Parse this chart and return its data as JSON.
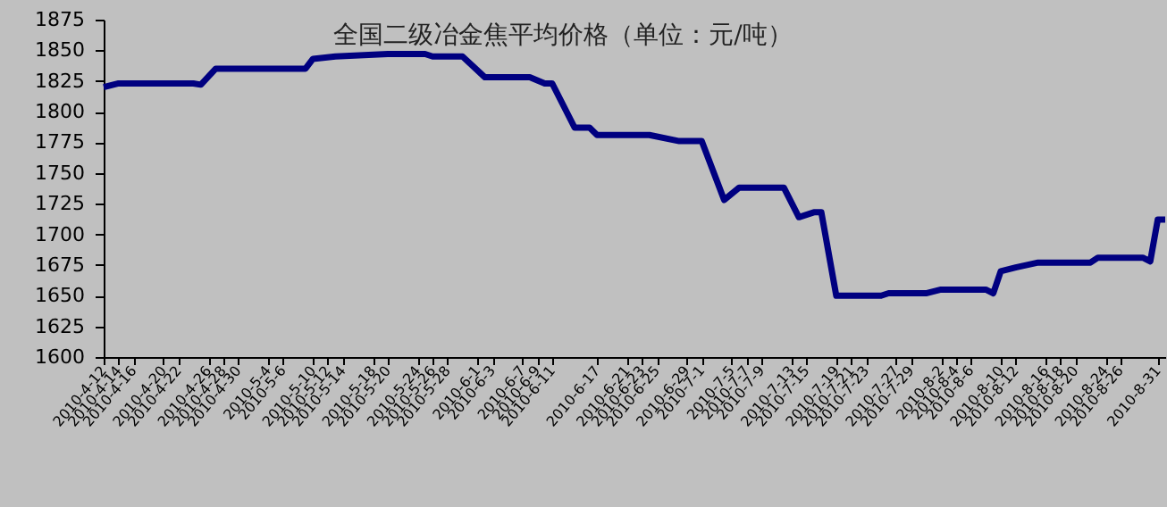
{
  "chart_data": {
    "type": "line",
    "title": "全国二级冶金焦平均价格（单位：元/吨）",
    "x": [
      "2010-04-12",
      "2010-04-14",
      "2010-04-24",
      "2010-04-25",
      "2010-04-27",
      "2010-05-09",
      "2010-05-10",
      "2010-05-13",
      "2010-05-20",
      "2010-05-25",
      "2010-05-26",
      "2010-05-30",
      "2010-06-02",
      "2010-06-08",
      "2010-06-10",
      "2010-06-11",
      "2010-06-14",
      "2010-06-16",
      "2010-06-17",
      "2010-06-24",
      "2010-06-28",
      "2010-07-01",
      "2010-07-04",
      "2010-07-06",
      "2010-07-12",
      "2010-07-14",
      "2010-07-16",
      "2010-07-17",
      "2010-07-19",
      "2010-07-25",
      "2010-07-26",
      "2010-07-31",
      "2010-08-02",
      "2010-08-08",
      "2010-08-09",
      "2010-08-10",
      "2010-08-12",
      "2010-08-15",
      "2010-08-22",
      "2010-08-23",
      "2010-08-29",
      "2010-08-30",
      "2010-08-31",
      "2010-09-01"
    ],
    "series": [
      {
        "color": "#000080",
        "values": [
          1820,
          1823,
          1823,
          1822,
          1835,
          1835,
          1843,
          1845,
          1847,
          1847,
          1845,
          1845,
          1828,
          1828,
          1823,
          1823,
          1787,
          1787,
          1781,
          1781,
          1776,
          1776,
          1728,
          1738,
          1738,
          1714,
          1718,
          1718,
          1650,
          1650,
          1652,
          1652,
          1655,
          1655,
          1652,
          1670,
          1673,
          1677,
          1677,
          1681,
          1681,
          1678,
          1712,
          1712
        ]
      }
    ],
    "xlim": [
      "2010-04-12",
      "2010-09-01"
    ],
    "xticks": [
      {
        "value": "2010-04-12",
        "label": "2010-4-12"
      },
      {
        "value": "2010-04-14",
        "label": "2010-4-14"
      },
      {
        "value": "2010-04-16",
        "label": "2010-4-16"
      },
      {
        "value": "2010-04-20",
        "label": "2010-4-20"
      },
      {
        "value": "2010-04-22",
        "label": "2010-4-22"
      },
      {
        "value": "2010-04-26",
        "label": "2010-4-26"
      },
      {
        "value": "2010-04-28",
        "label": "2010-4-28"
      },
      {
        "value": "2010-04-30",
        "label": "2010-4-30"
      },
      {
        "value": "2010-05-04",
        "label": "2010-5-4"
      },
      {
        "value": "2010-05-06",
        "label": "2010-5-6"
      },
      {
        "value": "2010-05-10",
        "label": "2010-5-10"
      },
      {
        "value": "2010-05-12",
        "label": "2010-5-12"
      },
      {
        "value": "2010-05-14",
        "label": "2010-5-14"
      },
      {
        "value": "2010-05-18",
        "label": "2010-5-18"
      },
      {
        "value": "2010-05-20",
        "label": "2010-5-20"
      },
      {
        "value": "2010-05-24",
        "label": "2010-5-24"
      },
      {
        "value": "2010-05-26",
        "label": "2010-5-26"
      },
      {
        "value": "2010-05-28",
        "label": "2010-5-28"
      },
      {
        "value": "2010-06-01",
        "label": "2010-6-1"
      },
      {
        "value": "2010-06-03",
        "label": "2010-6-3"
      },
      {
        "value": "2010-06-07",
        "label": "2010-6-7"
      },
      {
        "value": "2010-06-09",
        "label": "2010-6-9"
      },
      {
        "value": "2010-06-11",
        "label": "2010-6-11"
      },
      {
        "value": "2010-06-17",
        "label": "2010-6-17"
      },
      {
        "value": "2010-06-21",
        "label": "2010-6-21"
      },
      {
        "value": "2010-06-23",
        "label": "2010-6-23"
      },
      {
        "value": "2010-06-25",
        "label": "2010-6-25"
      },
      {
        "value": "2010-06-29",
        "label": "2010-6-29"
      },
      {
        "value": "2010-07-01",
        "label": "2010-7-1"
      },
      {
        "value": "2010-07-05",
        "label": "2010-7-5"
      },
      {
        "value": "2010-07-07",
        "label": "2010-7-7"
      },
      {
        "value": "2010-07-09",
        "label": "2010-7-9"
      },
      {
        "value": "2010-07-13",
        "label": "2010-7-13"
      },
      {
        "value": "2010-07-15",
        "label": "2010-7-15"
      },
      {
        "value": "2010-07-19",
        "label": "2010-7-19"
      },
      {
        "value": "2010-07-21",
        "label": "2010-7-21"
      },
      {
        "value": "2010-07-23",
        "label": "2010-7-23"
      },
      {
        "value": "2010-07-27",
        "label": "2010-7-27"
      },
      {
        "value": "2010-07-29",
        "label": "2010-7-29"
      },
      {
        "value": "2010-08-02",
        "label": "2010-8-2"
      },
      {
        "value": "2010-08-04",
        "label": "2010-8-4"
      },
      {
        "value": "2010-08-06",
        "label": "2010-8-6"
      },
      {
        "value": "2010-08-10",
        "label": "2010-8-10"
      },
      {
        "value": "2010-08-12",
        "label": "2010-8-12"
      },
      {
        "value": "2010-08-16",
        "label": "2010-8-16"
      },
      {
        "value": "2010-08-18",
        "label": "2010-8-18"
      },
      {
        "value": "2010-08-20",
        "label": "2010-8-20"
      },
      {
        "value": "2010-08-24",
        "label": "2010-8-24"
      },
      {
        "value": "2010-08-26",
        "label": "2010-8-26"
      },
      {
        "value": "2010-08-31",
        "label": "2010-8-31"
      }
    ],
    "ylim": [
      1600,
      1875
    ],
    "yticks": [
      1600,
      1625,
      1650,
      1675,
      1700,
      1725,
      1750,
      1775,
      1800,
      1825,
      1850,
      1875
    ],
    "grid": false,
    "legend": false,
    "marker": "none",
    "line_style": "solid"
  }
}
